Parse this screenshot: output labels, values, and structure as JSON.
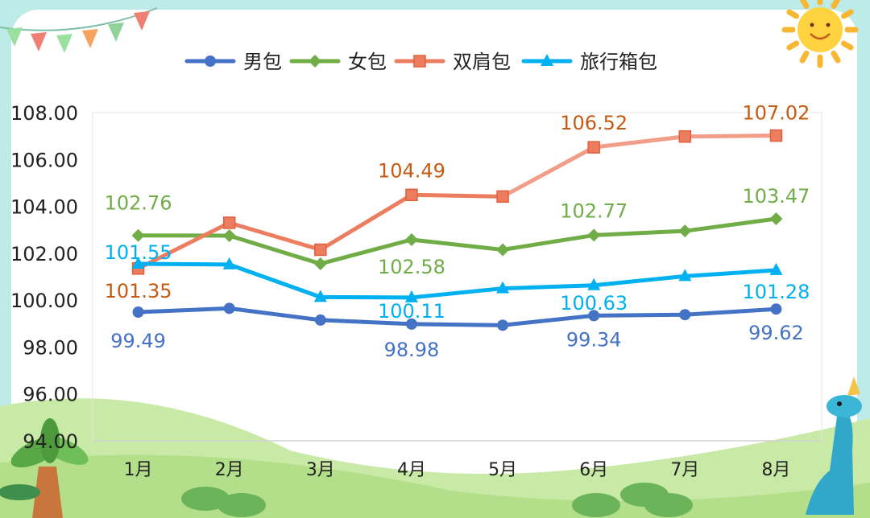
{
  "chart_data": {
    "type": "line",
    "categories": [
      "1月",
      "2月",
      "3月",
      "4月",
      "5月",
      "6月",
      "7月",
      "8月"
    ],
    "ylim": [
      94,
      108
    ],
    "yticks": [
      "94.00",
      "96.00",
      "98.00",
      "100.00",
      "102.00",
      "104.00",
      "106.00",
      "108.00"
    ],
    "legend_position": "top",
    "grid": false,
    "series": [
      {
        "name": "男包",
        "color": "#4472c4",
        "marker": "circle",
        "values": [
          99.49,
          99.65,
          99.15,
          98.98,
          98.93,
          99.34,
          99.38,
          99.62
        ],
        "labels": [
          {
            "i": 0,
            "text": "99.49"
          },
          {
            "i": 3,
            "text": "98.98"
          },
          {
            "i": 5,
            "text": "99.34"
          },
          {
            "i": 7,
            "text": "99.62"
          }
        ]
      },
      {
        "name": "女包",
        "color": "#70ad47",
        "marker": "diamond",
        "values": [
          102.76,
          102.75,
          101.55,
          102.58,
          102.15,
          102.77,
          102.95,
          103.47
        ],
        "labels": [
          {
            "i": 0,
            "text": "102.76"
          },
          {
            "i": 3,
            "text": "102.58"
          },
          {
            "i": 5,
            "text": "102.77"
          },
          {
            "i": 7,
            "text": "103.47"
          }
        ]
      },
      {
        "name": "双肩包",
        "color": "#ed7d5f",
        "marker": "square",
        "values": [
          101.35,
          103.3,
          102.15,
          104.49,
          104.42,
          106.52,
          106.98,
          107.02
        ],
        "labels": [
          {
            "i": 0,
            "text": "101.35"
          },
          {
            "i": 3,
            "text": "104.49"
          },
          {
            "i": 5,
            "text": "106.52"
          },
          {
            "i": 7,
            "text": "107.02"
          }
        ]
      },
      {
        "name": "旅行箱包",
        "color": "#00b0f0",
        "marker": "triangle",
        "values": [
          101.55,
          101.52,
          100.13,
          100.11,
          100.5,
          100.63,
          101.02,
          101.28
        ],
        "labels": [
          {
            "i": 0,
            "text": "101.55"
          },
          {
            "i": 3,
            "text": "100.11"
          },
          {
            "i": 5,
            "text": "100.63"
          },
          {
            "i": 7,
            "text": "101.28"
          }
        ]
      }
    ]
  }
}
